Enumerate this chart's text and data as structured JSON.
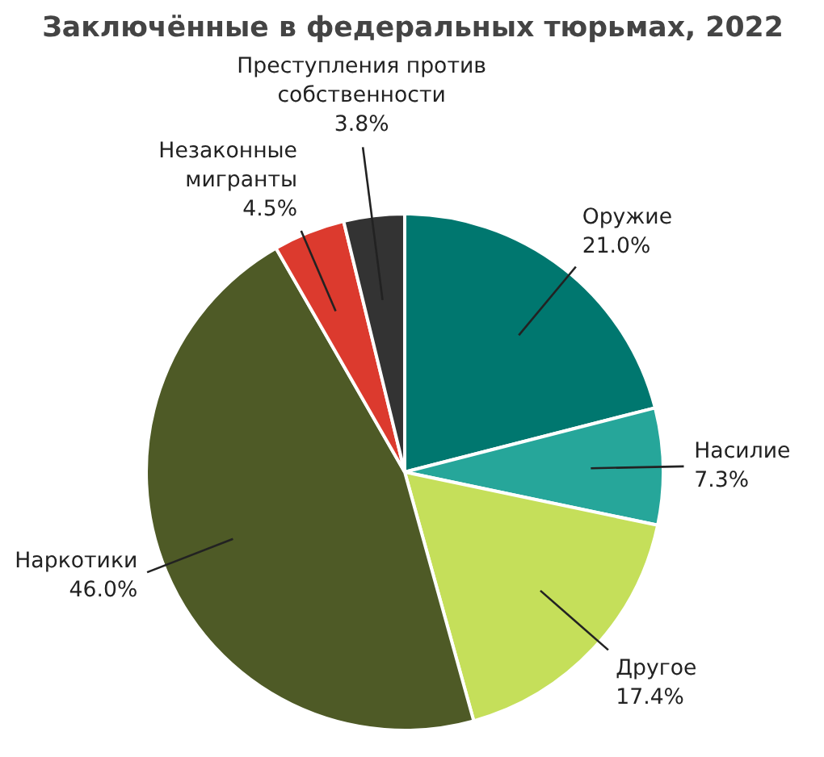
{
  "chart_data": {
    "type": "pie",
    "title": "Заключённые в федеральных тюрьмах, 2022",
    "categories": [
      "Оружие",
      "Насилие",
      "Другое",
      "Наркотики",
      "Незаконные\nмигранты",
      "Преступления против\nсобственности"
    ],
    "values": [
      21.0,
      7.3,
      17.4,
      46.0,
      4.5,
      3.8
    ],
    "value_labels": [
      "21.0%",
      "7.3%",
      "17.4%",
      "46.0%",
      "4.5%",
      "3.8%"
    ],
    "colors": [
      "#00776f",
      "#26a69a",
      "#c5df5a",
      "#4e5a26",
      "#dc3a2e",
      "#333333"
    ]
  }
}
